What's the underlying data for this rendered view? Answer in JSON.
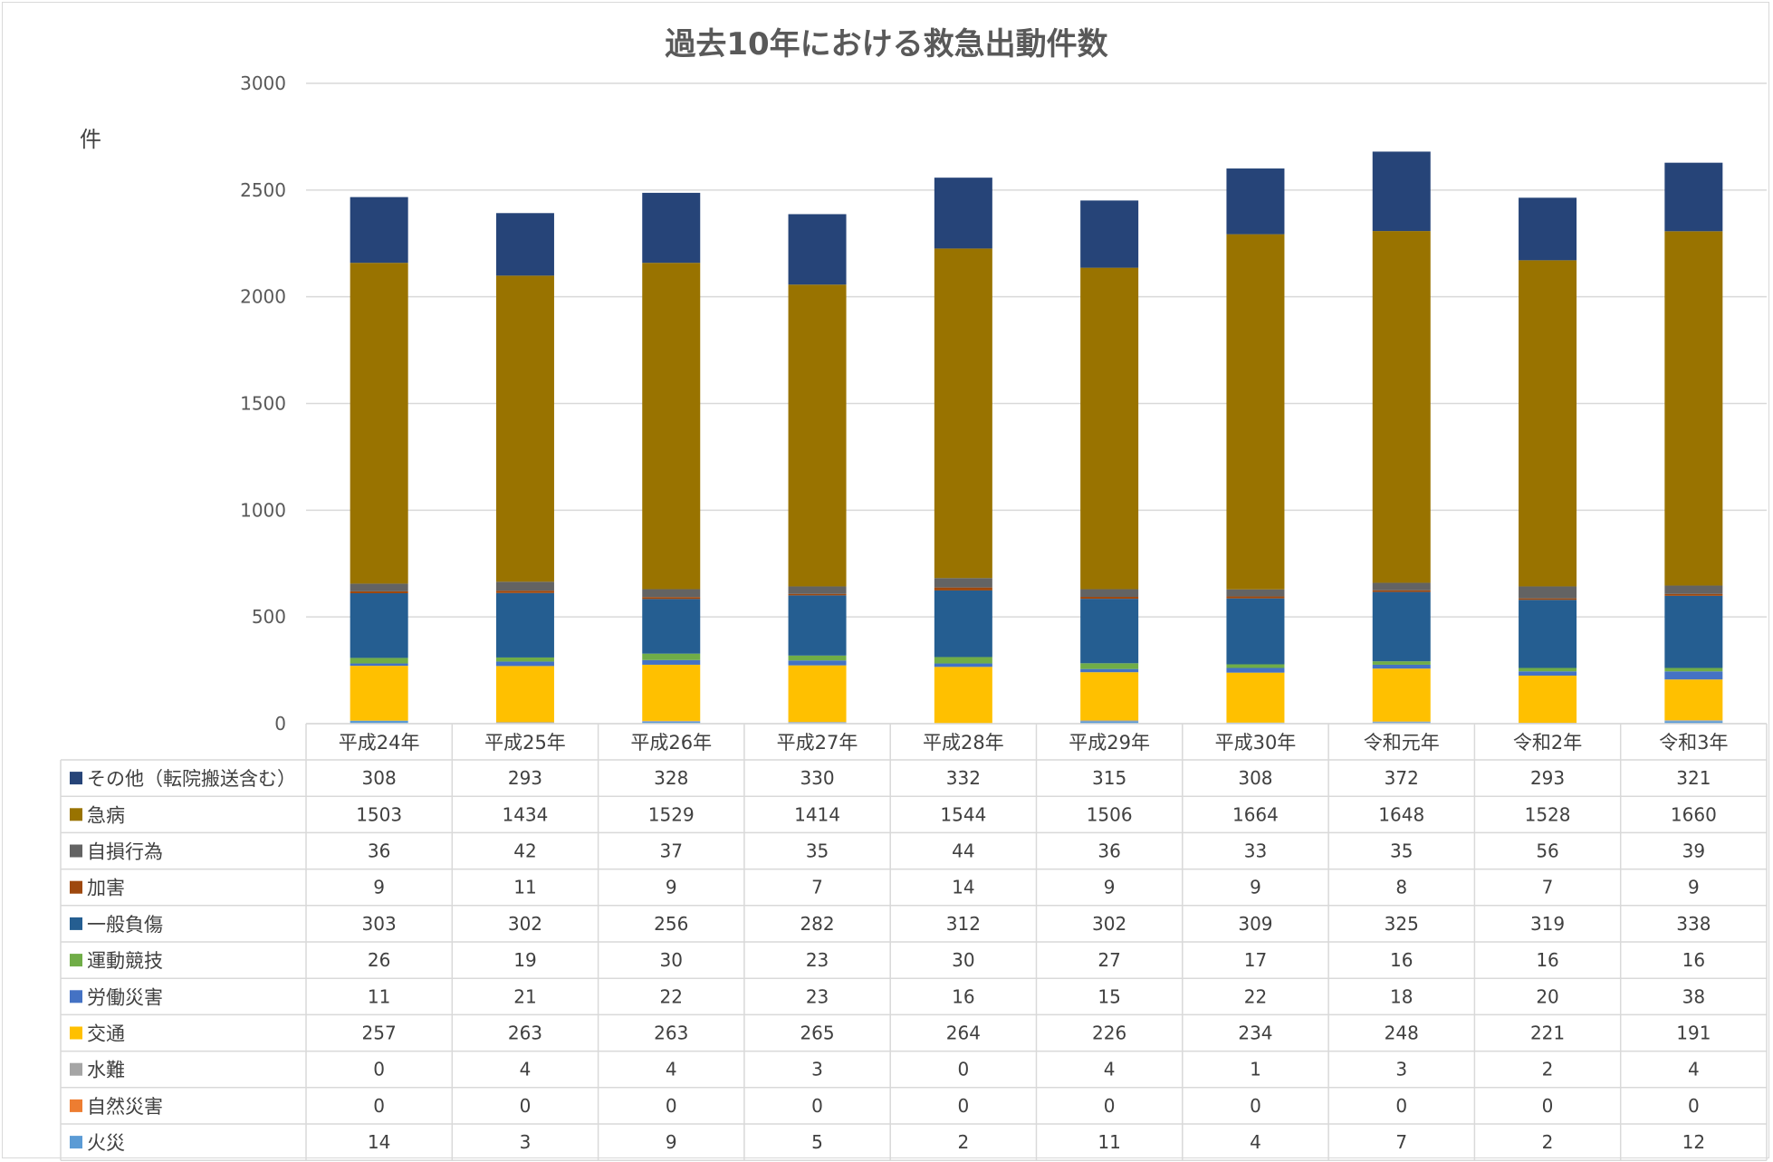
{
  "chart_data": {
    "type": "bar",
    "stacked": true,
    "title": "過去10年における救急出動件数",
    "ylabel": "件",
    "ylim": [
      0,
      3000
    ],
    "yticks": [
      0,
      500,
      1000,
      1500,
      2000,
      2500,
      3000
    ],
    "grid": true,
    "legend_placement": "data-table",
    "categories": [
      "平成24年",
      "平成25年",
      "平成26年",
      "平成27年",
      "平成28年",
      "平成29年",
      "平成30年",
      "令和元年",
      "令和2年",
      "令和3年"
    ],
    "series": [
      {
        "name": "火災",
        "color": "#5b9bd5",
        "values": [
          14,
          3,
          9,
          5,
          2,
          11,
          4,
          7,
          2,
          12
        ]
      },
      {
        "name": "自然災害",
        "color": "#ed7d31",
        "values": [
          0,
          0,
          0,
          0,
          0,
          0,
          0,
          0,
          0,
          0
        ]
      },
      {
        "name": "水難",
        "color": "#a5a5a5",
        "values": [
          0,
          4,
          4,
          3,
          0,
          4,
          1,
          3,
          2,
          4
        ]
      },
      {
        "name": "交通",
        "color": "#ffc000",
        "values": [
          257,
          263,
          263,
          265,
          264,
          226,
          234,
          248,
          221,
          191
        ]
      },
      {
        "name": "労働災害",
        "color": "#4472c4",
        "values": [
          11,
          21,
          22,
          23,
          16,
          15,
          22,
          18,
          20,
          38
        ]
      },
      {
        "name": "運動競技",
        "color": "#70ad47",
        "values": [
          26,
          19,
          30,
          23,
          30,
          27,
          17,
          16,
          16,
          16
        ]
      },
      {
        "name": "一般負傷",
        "color": "#255e91",
        "values": [
          303,
          302,
          256,
          282,
          312,
          302,
          309,
          325,
          319,
          338
        ]
      },
      {
        "name": "加害",
        "color": "#9e480e",
        "values": [
          9,
          11,
          9,
          7,
          14,
          9,
          9,
          8,
          7,
          9
        ]
      },
      {
        "name": "自損行為",
        "color": "#636363",
        "values": [
          36,
          42,
          37,
          35,
          44,
          36,
          33,
          35,
          56,
          39
        ]
      },
      {
        "name": "急病",
        "color": "#997300",
        "values": [
          1503,
          1434,
          1529,
          1414,
          1544,
          1506,
          1664,
          1648,
          1528,
          1660
        ]
      },
      {
        "name": "その他（転院搬送含む）",
        "color": "#264478",
        "values": [
          308,
          293,
          328,
          330,
          332,
          315,
          308,
          372,
          293,
          321
        ]
      }
    ]
  }
}
